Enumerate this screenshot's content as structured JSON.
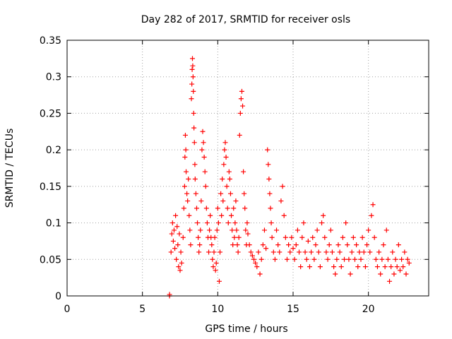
{
  "chart_data": {
    "type": "scatter",
    "title": "Day 282 of 2017, SRMTID for receiver osls",
    "xlabel": "GPS time / hours",
    "ylabel": "SRMTID / TECUs",
    "xlim": [
      0,
      24
    ],
    "ylim": [
      0,
      0.35
    ],
    "grid": true,
    "marker": "+",
    "marker_color": "#ff0000",
    "x_ticks": [
      0,
      5,
      10,
      15,
      20
    ],
    "x_tick_labels": [
      "0",
      "5",
      "10",
      "15",
      "20"
    ],
    "y_ticks": [
      0,
      0.05,
      0.1,
      0.15,
      0.2,
      0.25,
      0.3,
      0.35
    ],
    "y_tick_labels": [
      "0",
      "0.05",
      "0.1",
      "0.15",
      "0.2",
      "0.25",
      "0.3",
      "0.35"
    ],
    "series": [
      {
        "name": "osls",
        "points": [
          [
            6.8,
            0.0
          ],
          [
            6.8,
            0.002
          ],
          [
            6.9,
            0.06
          ],
          [
            6.95,
            0.085
          ],
          [
            7.0,
            0.1
          ],
          [
            7.05,
            0.075
          ],
          [
            7.1,
            0.09
          ],
          [
            7.15,
            0.065
          ],
          [
            7.2,
            0.11
          ],
          [
            7.25,
            0.05
          ],
          [
            7.3,
            0.095
          ],
          [
            7.35,
            0.07
          ],
          [
            7.4,
            0.04
          ],
          [
            7.45,
            0.085
          ],
          [
            7.5,
            0.035
          ],
          [
            7.55,
            0.06
          ],
          [
            7.6,
            0.045
          ],
          [
            7.7,
            0.08
          ],
          [
            7.75,
            0.12
          ],
          [
            7.8,
            0.15
          ],
          [
            7.82,
            0.19
          ],
          [
            7.85,
            0.22
          ],
          [
            7.88,
            0.2
          ],
          [
            7.9,
            0.17
          ],
          [
            7.95,
            0.14
          ],
          [
            8.0,
            0.13
          ],
          [
            8.05,
            0.16
          ],
          [
            8.1,
            0.11
          ],
          [
            8.15,
            0.09
          ],
          [
            8.2,
            0.07
          ],
          [
            8.25,
            0.27
          ],
          [
            8.28,
            0.29
          ],
          [
            8.3,
            0.31
          ],
          [
            8.32,
            0.325
          ],
          [
            8.34,
            0.315
          ],
          [
            8.36,
            0.3
          ],
          [
            8.38,
            0.28
          ],
          [
            8.4,
            0.25
          ],
          [
            8.42,
            0.23
          ],
          [
            8.45,
            0.21
          ],
          [
            8.48,
            0.18
          ],
          [
            8.5,
            0.16
          ],
          [
            8.55,
            0.14
          ],
          [
            8.6,
            0.12
          ],
          [
            8.65,
            0.1
          ],
          [
            8.7,
            0.08
          ],
          [
            8.75,
            0.06
          ],
          [
            8.8,
            0.07
          ],
          [
            8.85,
            0.09
          ],
          [
            8.9,
            0.13
          ],
          [
            8.95,
            0.2
          ],
          [
            9.0,
            0.225
          ],
          [
            9.05,
            0.21
          ],
          [
            9.1,
            0.19
          ],
          [
            9.15,
            0.17
          ],
          [
            9.2,
            0.15
          ],
          [
            9.25,
            0.12
          ],
          [
            9.3,
            0.1
          ],
          [
            9.35,
            0.08
          ],
          [
            9.4,
            0.06
          ],
          [
            9.45,
            0.09
          ],
          [
            9.5,
            0.11
          ],
          [
            9.55,
            0.08
          ],
          [
            9.6,
            0.07
          ],
          [
            9.65,
            0.05
          ],
          [
            9.7,
            0.04
          ],
          [
            9.75,
            0.06
          ],
          [
            9.8,
            0.08
          ],
          [
            9.85,
            0.035
          ],
          [
            9.9,
            0.045
          ],
          [
            9.95,
            0.09
          ],
          [
            10.0,
            0.12
          ],
          [
            10.05,
            0.1
          ],
          [
            10.1,
            0.02
          ],
          [
            10.15,
            0.06
          ],
          [
            10.2,
            0.14
          ],
          [
            10.25,
            0.11
          ],
          [
            10.3,
            0.16
          ],
          [
            10.35,
            0.13
          ],
          [
            10.4,
            0.18
          ],
          [
            10.45,
            0.2
          ],
          [
            10.5,
            0.21
          ],
          [
            10.55,
            0.19
          ],
          [
            10.6,
            0.15
          ],
          [
            10.65,
            0.12
          ],
          [
            10.7,
            0.1
          ],
          [
            10.75,
            0.17
          ],
          [
            10.8,
            0.16
          ],
          [
            10.85,
            0.14
          ],
          [
            10.9,
            0.11
          ],
          [
            10.95,
            0.09
          ],
          [
            11.0,
            0.07
          ],
          [
            11.05,
            0.12
          ],
          [
            11.1,
            0.08
          ],
          [
            11.15,
            0.1
          ],
          [
            11.2,
            0.13
          ],
          [
            11.25,
            0.09
          ],
          [
            11.3,
            0.07
          ],
          [
            11.35,
            0.06
          ],
          [
            11.4,
            0.08
          ],
          [
            11.45,
            0.22
          ],
          [
            11.5,
            0.25
          ],
          [
            11.55,
            0.27
          ],
          [
            11.6,
            0.28
          ],
          [
            11.65,
            0.26
          ],
          [
            11.7,
            0.17
          ],
          [
            11.75,
            0.14
          ],
          [
            11.8,
            0.12
          ],
          [
            11.85,
            0.09
          ],
          [
            11.9,
            0.07
          ],
          [
            11.95,
            0.1
          ],
          [
            12.0,
            0.085
          ],
          [
            12.1,
            0.07
          ],
          [
            12.2,
            0.06
          ],
          [
            12.3,
            0.055
          ],
          [
            12.4,
            0.05
          ],
          [
            12.5,
            0.045
          ],
          [
            12.6,
            0.04
          ],
          [
            12.7,
            0.06
          ],
          [
            12.8,
            0.03
          ],
          [
            12.9,
            0.05
          ],
          [
            13.0,
            0.07
          ],
          [
            13.1,
            0.09
          ],
          [
            13.2,
            0.065
          ],
          [
            13.3,
            0.2
          ],
          [
            13.35,
            0.18
          ],
          [
            13.4,
            0.16
          ],
          [
            13.45,
            0.14
          ],
          [
            13.5,
            0.12
          ],
          [
            13.55,
            0.1
          ],
          [
            13.6,
            0.08
          ],
          [
            13.7,
            0.06
          ],
          [
            13.8,
            0.05
          ],
          [
            13.9,
            0.09
          ],
          [
            14.0,
            0.07
          ],
          [
            14.1,
            0.06
          ],
          [
            14.2,
            0.13
          ],
          [
            14.3,
            0.15
          ],
          [
            14.4,
            0.11
          ],
          [
            14.5,
            0.08
          ],
          [
            14.6,
            0.05
          ],
          [
            14.7,
            0.07
          ],
          [
            14.8,
            0.06
          ],
          [
            14.9,
            0.08
          ],
          [
            15.0,
            0.065
          ],
          [
            15.1,
            0.05
          ],
          [
            15.2,
            0.07
          ],
          [
            15.3,
            0.09
          ],
          [
            15.4,
            0.06
          ],
          [
            15.5,
            0.04
          ],
          [
            15.6,
            0.08
          ],
          [
            15.7,
            0.1
          ],
          [
            15.8,
            0.06
          ],
          [
            15.9,
            0.05
          ],
          [
            16.0,
            0.075
          ],
          [
            16.1,
            0.04
          ],
          [
            16.2,
            0.06
          ],
          [
            16.3,
            0.08
          ],
          [
            16.4,
            0.05
          ],
          [
            16.5,
            0.07
          ],
          [
            16.6,
            0.09
          ],
          [
            16.7,
            0.06
          ],
          [
            16.8,
            0.04
          ],
          [
            16.9,
            0.1
          ],
          [
            17.0,
            0.11
          ],
          [
            17.1,
            0.08
          ],
          [
            17.2,
            0.06
          ],
          [
            17.3,
            0.05
          ],
          [
            17.4,
            0.07
          ],
          [
            17.5,
            0.09
          ],
          [
            17.6,
            0.06
          ],
          [
            17.7,
            0.04
          ],
          [
            17.8,
            0.03
          ],
          [
            17.9,
            0.05
          ],
          [
            18.0,
            0.07
          ],
          [
            18.1,
            0.06
          ],
          [
            18.2,
            0.04
          ],
          [
            18.3,
            0.08
          ],
          [
            18.4,
            0.05
          ],
          [
            18.5,
            0.1
          ],
          [
            18.6,
            0.07
          ],
          [
            18.7,
            0.05
          ],
          [
            18.8,
            0.03
          ],
          [
            18.9,
            0.06
          ],
          [
            19.0,
            0.08
          ],
          [
            19.1,
            0.05
          ],
          [
            19.2,
            0.07
          ],
          [
            19.3,
            0.04
          ],
          [
            19.4,
            0.06
          ],
          [
            19.5,
            0.05
          ],
          [
            19.6,
            0.08
          ],
          [
            19.7,
            0.06
          ],
          [
            19.8,
            0.04
          ],
          [
            19.9,
            0.07
          ],
          [
            20.0,
            0.09
          ],
          [
            20.1,
            0.06
          ],
          [
            20.2,
            0.11
          ],
          [
            20.3,
            0.125
          ],
          [
            20.4,
            0.08
          ],
          [
            20.5,
            0.05
          ],
          [
            20.6,
            0.04
          ],
          [
            20.7,
            0.06
          ],
          [
            20.8,
            0.03
          ],
          [
            20.9,
            0.05
          ],
          [
            21.0,
            0.07
          ],
          [
            21.1,
            0.04
          ],
          [
            21.2,
            0.09
          ],
          [
            21.3,
            0.05
          ],
          [
            21.4,
            0.02
          ],
          [
            21.5,
            0.04
          ],
          [
            21.6,
            0.06
          ],
          [
            21.7,
            0.03
          ],
          [
            21.8,
            0.05
          ],
          [
            21.9,
            0.04
          ],
          [
            22.0,
            0.07
          ],
          [
            22.1,
            0.035
          ],
          [
            22.2,
            0.05
          ],
          [
            22.3,
            0.04
          ],
          [
            22.4,
            0.06
          ],
          [
            22.5,
            0.03
          ],
          [
            22.6,
            0.05
          ],
          [
            22.7,
            0.045
          ]
        ]
      }
    ]
  }
}
